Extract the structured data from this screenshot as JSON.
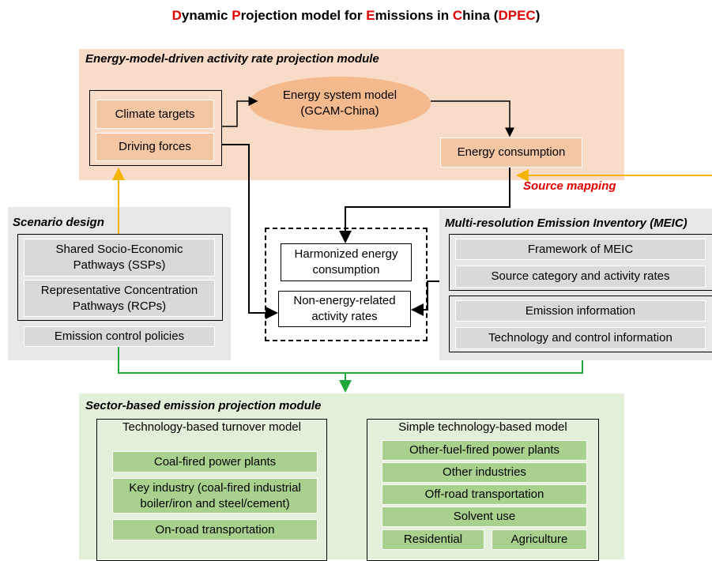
{
  "title": {
    "parts": [
      "D",
      "ynamic ",
      "P",
      "rojection model for ",
      "E",
      "missions in ",
      "C",
      "hina (",
      "DPEC",
      ")"
    ]
  },
  "energy_module": {
    "title": "Energy-model-driven activity rate projection module",
    "inputs": [
      "Climate targets",
      "Driving forces"
    ],
    "model": [
      "Energy system model",
      "(GCAM-China)"
    ],
    "output": "Energy consumption",
    "source_mapping": "Source mapping"
  },
  "scenario_design": {
    "title": "Scenario design",
    "pathways": [
      [
        "Shared Socio-Economic",
        "Pathways (SSPs)"
      ],
      [
        "Representative Concentration",
        "Pathways (RCPs)"
      ]
    ],
    "policies": "Emission control policies"
  },
  "harmonization": {
    "items": [
      [
        "Harmonized energy",
        "consumption"
      ],
      [
        "Non-energy-related",
        "activity rates"
      ]
    ]
  },
  "meic": {
    "title": "Multi-resolution Emission Inventory (MEIC)",
    "groups": [
      [
        "Framework of MEIC",
        "Source category and activity rates"
      ],
      [
        "Emission information",
        "Technology and control information"
      ]
    ]
  },
  "sector_module": {
    "title": "Sector-based emission projection module",
    "turnover_model": {
      "title": "Technology-based turnover model",
      "items": [
        [
          "Coal-fired power plants"
        ],
        [
          "Key industry (coal-fired industrial",
          "boiler/iron and steel/cement)"
        ],
        [
          "On-road transportation"
        ]
      ]
    },
    "simple_model": {
      "title": "Simple technology-based model",
      "items": [
        "Other-fuel-fired power plants",
        "Other industries",
        "Off-road transportation",
        "Solvent use",
        "Residential",
        "Agriculture"
      ]
    }
  }
}
